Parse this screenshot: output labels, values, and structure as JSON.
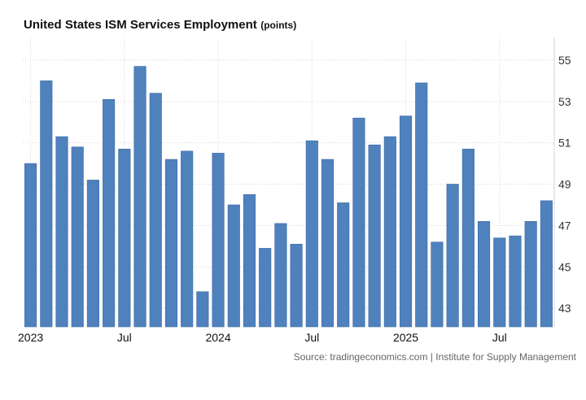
{
  "header": {
    "title": "United States ISM Services Employment",
    "units": "(points)"
  },
  "footer": {
    "source": "Source: tradingeconomics.com | Institute for Supply Management"
  },
  "colors": {
    "bar": "#4f81bd",
    "bar_edge": "#3c6aa4",
    "grid": "#d6d6d6",
    "text": "#111111",
    "axis_text": "#333333"
  },
  "chart_data": {
    "type": "bar",
    "title": "United States ISM Services Employment",
    "units": "points",
    "categories": [
      "2023-01",
      "2023-02",
      "2023-03",
      "2023-04",
      "2023-05",
      "2023-06",
      "2023-07",
      "2023-08",
      "2023-09",
      "2023-10",
      "2023-11",
      "2023-12",
      "2024-01",
      "2024-02",
      "2024-03",
      "2024-04",
      "2024-05",
      "2024-06",
      "2024-07",
      "2024-08",
      "2024-09",
      "2024-10",
      "2024-11",
      "2024-12",
      "2025-01",
      "2025-02",
      "2025-03",
      "2025-04",
      "2025-05",
      "2025-06",
      "2025-07",
      "2025-08",
      "2025-09",
      "2025-10"
    ],
    "values": [
      50.0,
      54.0,
      51.3,
      50.8,
      49.2,
      53.1,
      50.7,
      54.7,
      53.4,
      50.2,
      50.6,
      43.8,
      50.5,
      48.0,
      48.5,
      45.9,
      47.1,
      46.1,
      51.1,
      50.2,
      48.1,
      52.2,
      50.9,
      51.3,
      52.3,
      53.9,
      46.2,
      49.0,
      50.7,
      47.2,
      46.4,
      46.5,
      47.2,
      48.2
    ],
    "x_tick_labels": [
      {
        "label": "2023",
        "index": 0
      },
      {
        "label": "Jul",
        "index": 6
      },
      {
        "label": "2024",
        "index": 12
      },
      {
        "label": "Jul",
        "index": 18
      },
      {
        "label": "2025",
        "index": 24
      },
      {
        "label": "Jul",
        "index": 30
      }
    ],
    "y_ticks": [
      43,
      45,
      47,
      49,
      51,
      53,
      55
    ],
    "ylim": [
      42.1,
      56.1
    ],
    "grid": true,
    "y_axis_side": "right",
    "legend": "none"
  }
}
